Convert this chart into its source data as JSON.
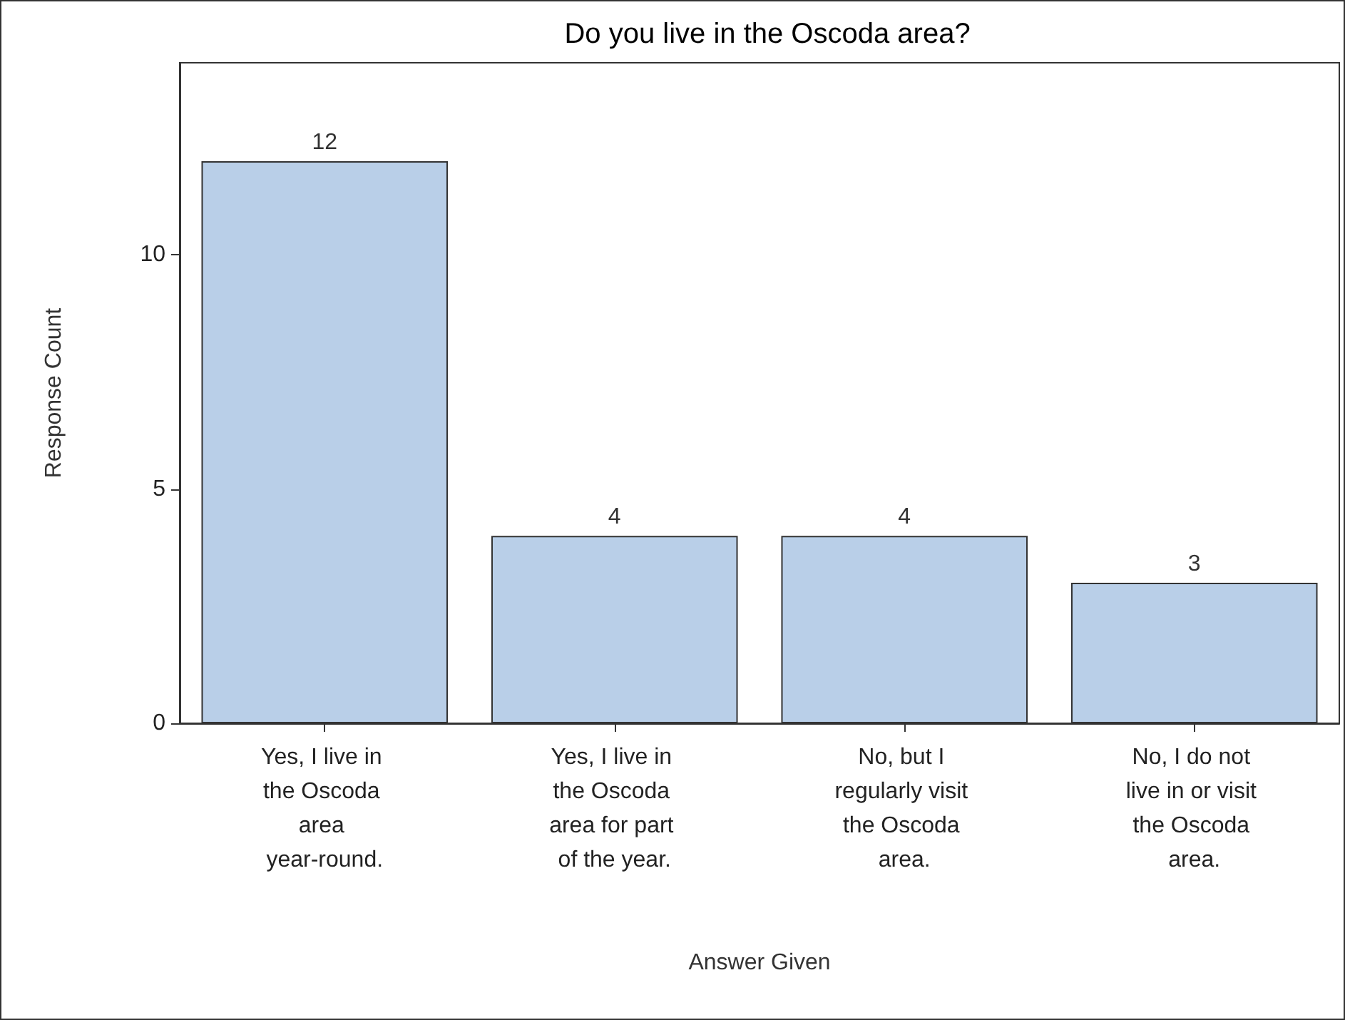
{
  "chart_data": {
    "type": "bar",
    "title": "Do you live in the Oscoda area?",
    "xlabel": "Answer Given",
    "ylabel": "Response Count",
    "categories": [
      "Yes, I live in the Oscoda area year-round.",
      "Yes, I live in the Oscoda area for part of the year.",
      "No, but I regularly visit the Oscoda area.",
      "No, I do not live in or visit the Oscoda area."
    ],
    "values": [
      12,
      4,
      4,
      3
    ],
    "color": "#b9cfe8",
    "ylim": [
      0,
      14.1
    ],
    "yticks": [
      0,
      5,
      10
    ],
    "grid": false,
    "data_labels": true
  }
}
